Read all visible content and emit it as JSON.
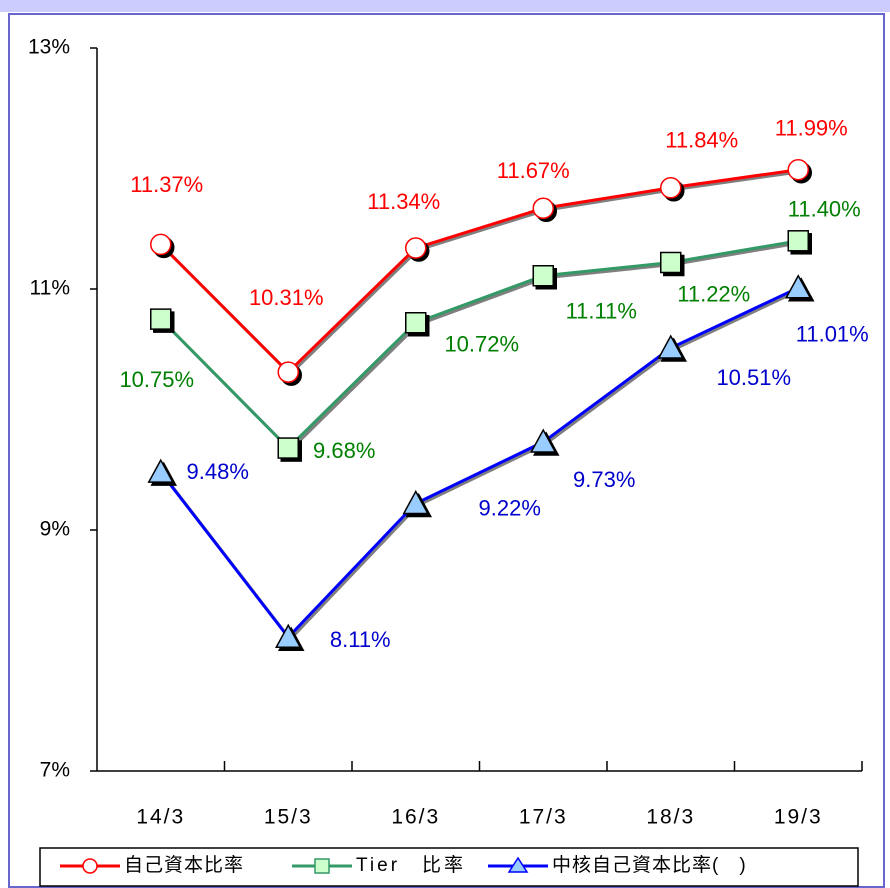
{
  "chart_data": {
    "type": "line",
    "categories": [
      "14/3",
      "15/3",
      "16/3",
      "17/3",
      "18/3",
      "19/3"
    ],
    "series": [
      {
        "name": "自己資本比率",
        "color": "#ff0000",
        "label_color": "#ff0000",
        "marker": "circle",
        "marker_fill": "#ffffff",
        "values": [
          11.37,
          10.31,
          11.34,
          11.67,
          11.84,
          11.99
        ],
        "value_labels": [
          "11.37%",
          "10.31%",
          "11.34%",
          "11.67%",
          "11.84%",
          "11.99%"
        ]
      },
      {
        "name": "Tier　比率",
        "color": "#339966",
        "label_color": "#008000",
        "marker": "square",
        "marker_fill": "#ccffcc",
        "values": [
          10.75,
          9.68,
          10.72,
          11.11,
          11.22,
          11.4
        ],
        "value_labels": [
          "10.75%",
          "9.68%",
          "10.72%",
          "11.11%",
          "11.22%",
          "11.40%"
        ]
      },
      {
        "name": "中核自己資本比率(　)",
        "color": "#0000ff",
        "label_color": "#0000cc",
        "marker": "triangle",
        "marker_fill": "#99ccff",
        "values": [
          9.48,
          8.11,
          9.22,
          9.73,
          10.51,
          11.01
        ],
        "value_labels": [
          "9.48%",
          "8.11%",
          "9.22%",
          "9.73%",
          "10.51%",
          "11.01%"
        ]
      }
    ],
    "ylim": [
      7,
      13
    ],
    "yticks": [
      {
        "value": 7,
        "label": "7%"
      },
      {
        "value": 9,
        "label": "9%"
      },
      {
        "value": 11,
        "label": "11%"
      },
      {
        "value": 13,
        "label": "13%"
      }
    ],
    "legend": "bottom"
  }
}
